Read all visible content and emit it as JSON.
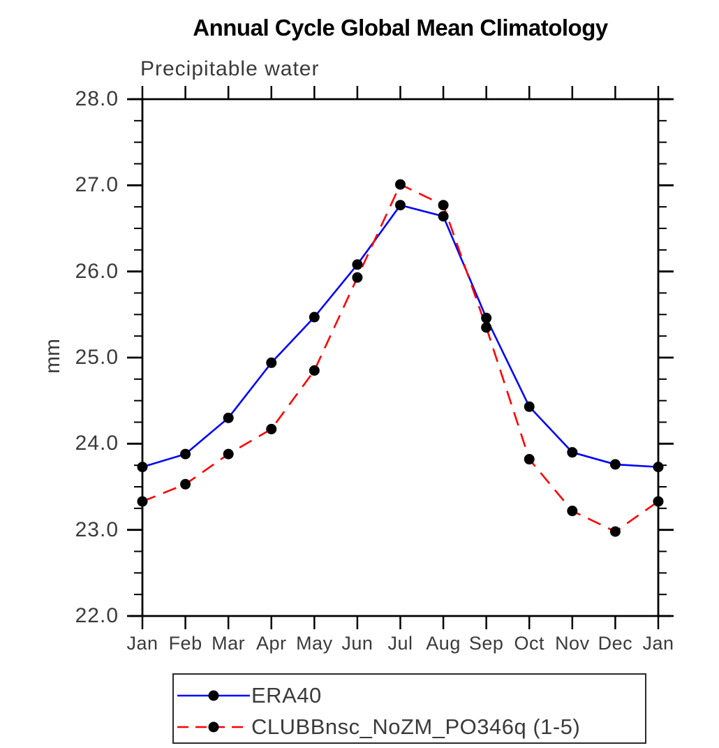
{
  "title": "Annual Cycle Global Mean Climatology",
  "subtitle": "Precipitable water",
  "chart_data": {
    "type": "line",
    "title": "Annual Cycle Global Mean Climatology",
    "subtitle": "Precipitable water",
    "ylabel": "mm",
    "xlabel": "",
    "x_tick_labels": [
      "Jan",
      "Feb",
      "Mar",
      "Apr",
      "May",
      "Jun",
      "Jul",
      "Aug",
      "Sep",
      "Oct",
      "Nov",
      "Dec",
      "Jan"
    ],
    "ylim": [
      22.0,
      28.0
    ],
    "y_ticks": [
      22.0,
      23.0,
      24.0,
      25.0,
      26.0,
      27.0,
      28.0
    ],
    "y_tick_labels": [
      "22.0",
      "23.0",
      "24.0",
      "25.0",
      "26.0",
      "27.0",
      "28.0"
    ],
    "y_minor_step": 0.25,
    "grid": false,
    "legend_position": "below",
    "series": [
      {
        "name": "ERA40",
        "color": "#0000ff",
        "style": "solid",
        "marker": "filled-circle",
        "marker_color": "#000000",
        "values": [
          23.73,
          23.88,
          24.3,
          24.94,
          25.47,
          26.08,
          26.77,
          26.64,
          25.46,
          24.43,
          23.9,
          23.76,
          23.73
        ]
      },
      {
        "name": "CLUBBnsc_NoZM_PO346q (1-5)",
        "color": "#ff0000",
        "style": "dashed",
        "marker": "filled-circle",
        "marker_color": "#000000",
        "values": [
          23.33,
          23.53,
          23.88,
          24.17,
          24.85,
          25.93,
          27.01,
          26.77,
          25.35,
          23.82,
          23.22,
          22.98,
          23.33
        ]
      }
    ]
  },
  "colors": {
    "axis": "#000000",
    "text": "#3a3a3a",
    "era40_line": "#0000ff",
    "clubb_line": "#ff0000",
    "marker": "#000000",
    "background": "#ffffff"
  }
}
